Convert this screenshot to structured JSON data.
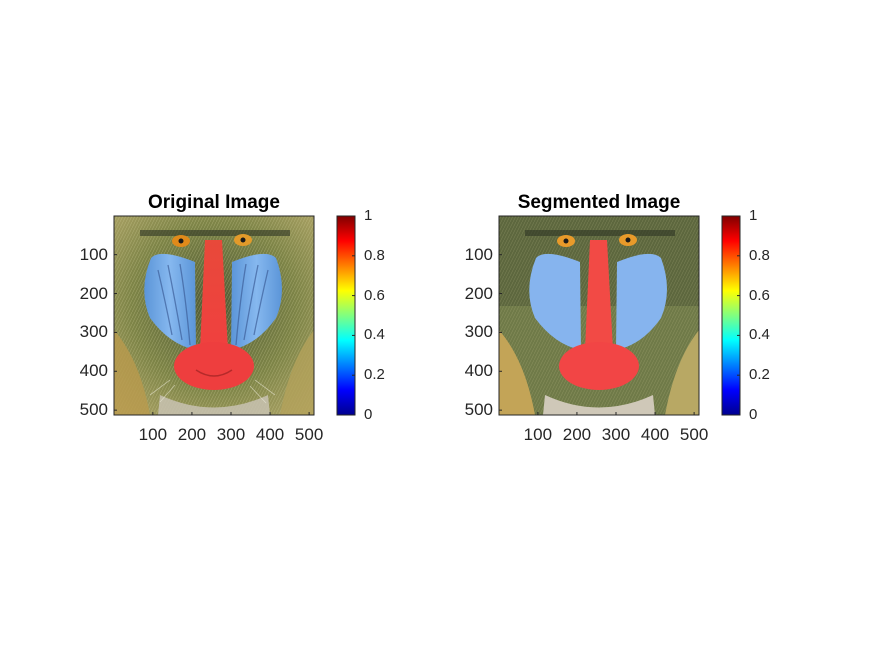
{
  "chart_data": [
    {
      "type": "heatmap",
      "title": "Original Image",
      "xlabel": "",
      "ylabel": "",
      "xticks": [
        100,
        200,
        300,
        400,
        500
      ],
      "yticks": [
        100,
        200,
        300,
        400,
        500
      ],
      "xlim": [
        0.5,
        512.5
      ],
      "ylim": [
        0.5,
        512.5
      ],
      "y_direction": "reverse",
      "image": "RGB photograph of a mandrill face (orange eyes, blue cheek ridges, red nose)",
      "colorbar": {
        "colormap": "jet",
        "ticks": [
          0,
          0.2,
          0.4,
          0.6,
          0.8,
          1
        ],
        "range": [
          0,
          1
        ]
      }
    },
    {
      "type": "heatmap",
      "title": "Segmented Image",
      "xlabel": "",
      "ylabel": "",
      "xticks": [
        100,
        200,
        300,
        400,
        500
      ],
      "yticks": [
        100,
        200,
        300,
        400,
        500
      ],
      "xlim": [
        0.5,
        512.5
      ],
      "ylim": [
        0.5,
        512.5
      ],
      "y_direction": "reverse",
      "image": "color-segmented mandrill face with smoothed regions",
      "colorbar": {
        "colormap": "jet",
        "ticks": [
          0,
          0.2,
          0.4,
          0.6,
          0.8,
          1
        ],
        "range": [
          0,
          1
        ]
      }
    }
  ],
  "colors": {
    "background": "#ffffff",
    "axis": "#262626",
    "fur_dark": "#5a6638",
    "fur_light": "#a3a86a",
    "cheek_blue": "#6fa8e8",
    "nose_red": "#ef3b3b",
    "eye_orange": "#e08a1a"
  }
}
